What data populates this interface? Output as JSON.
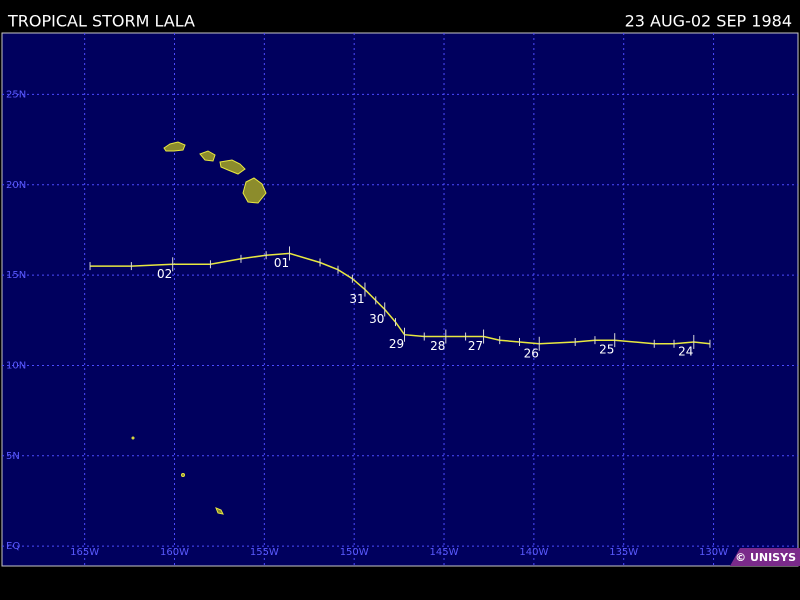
{
  "header": {
    "title": "TROPICAL STORM LALA",
    "dates": "23 AUG-02 SEP 1984"
  },
  "map": {
    "lonlim": [
      -169.6,
      -125.3
    ],
    "latlim": [
      -1.1,
      28.4
    ],
    "lonticks": [
      {
        "value": -165,
        "label": "165W"
      },
      {
        "value": -160,
        "label": "160W"
      },
      {
        "value": -155,
        "label": "155W"
      },
      {
        "value": -150,
        "label": "150W"
      },
      {
        "value": -145,
        "label": "145W"
      },
      {
        "value": -140,
        "label": "140W"
      },
      {
        "value": -135,
        "label": "135W"
      },
      {
        "value": -130,
        "label": "130W"
      }
    ],
    "latticks": [
      {
        "value": 0,
        "label": "EQ"
      },
      {
        "value": 5,
        "label": "5N"
      },
      {
        "value": 10,
        "label": "10N"
      },
      {
        "value": 15,
        "label": "15N"
      },
      {
        "value": 20,
        "label": "20N"
      },
      {
        "value": 25,
        "label": "25N"
      }
    ],
    "track_color": "#e8e840",
    "track": [
      {
        "lon": -130.2,
        "lat": 11.2
      },
      {
        "lon": -131.1,
        "lat": 11.3,
        "label": "24"
      },
      {
        "lon": -132.2,
        "lat": 11.2
      },
      {
        "lon": -133.3,
        "lat": 11.2
      },
      {
        "lon": -135.5,
        "lat": 11.4,
        "label": "25"
      },
      {
        "lon": -136.6,
        "lat": 11.4
      },
      {
        "lon": -137.7,
        "lat": 11.3
      },
      {
        "lon": -139.7,
        "lat": 11.2,
        "label": "26"
      },
      {
        "lon": -140.8,
        "lat": 11.3
      },
      {
        "lon": -141.9,
        "lat": 11.4
      },
      {
        "lon": -142.8,
        "lat": 11.6,
        "label": "27"
      },
      {
        "lon": -143.8,
        "lat": 11.6
      },
      {
        "lon": -144.9,
        "lat": 11.6,
        "label": "28"
      },
      {
        "lon": -146.1,
        "lat": 11.6
      },
      {
        "lon": -147.2,
        "lat": 11.7,
        "label": "29"
      },
      {
        "lon": -147.7,
        "lat": 12.4
      },
      {
        "lon": -148.3,
        "lat": 13.1,
        "label": "30"
      },
      {
        "lon": -148.8,
        "lat": 13.6
      },
      {
        "lon": -149.4,
        "lat": 14.2,
        "label": "31"
      },
      {
        "lon": -150.1,
        "lat": 14.8
      },
      {
        "lon": -150.9,
        "lat": 15.3
      },
      {
        "lon": -151.9,
        "lat": 15.7
      },
      {
        "lon": -153.6,
        "lat": 16.2,
        "label": "01"
      },
      {
        "lon": -154.9,
        "lat": 16.1
      },
      {
        "lon": -156.3,
        "lat": 15.9
      },
      {
        "lon": -158.0,
        "lat": 15.6
      },
      {
        "lon": -160.1,
        "lat": 15.6,
        "label": "02"
      },
      {
        "lon": -162.4,
        "lat": 15.5
      },
      {
        "lon": -164.7,
        "lat": 15.5
      }
    ]
  },
  "credit": "© UNISYS"
}
